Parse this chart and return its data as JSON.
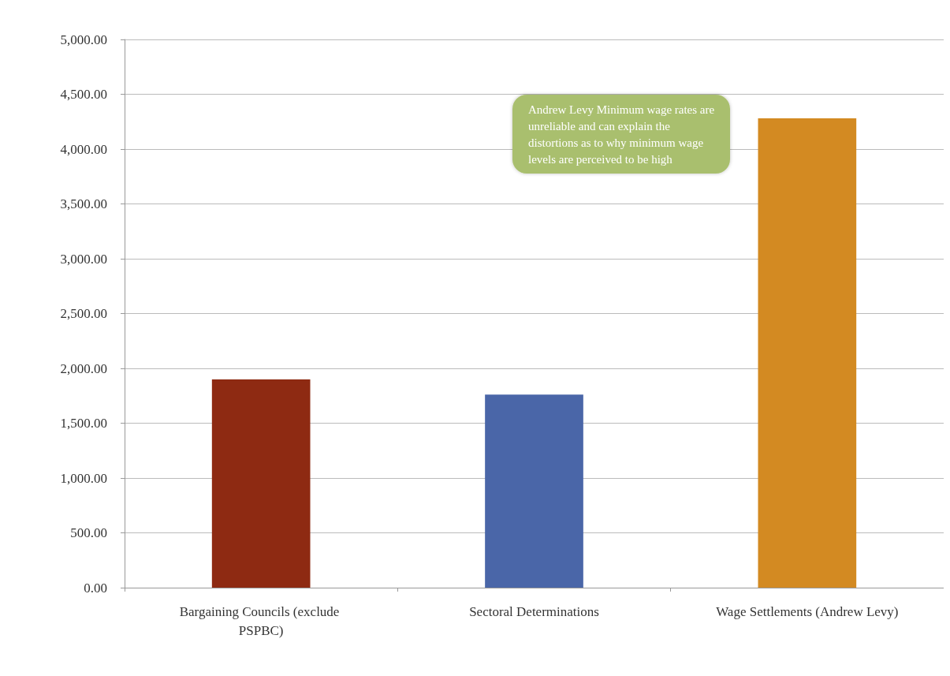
{
  "chart_data": {
    "type": "bar",
    "categories": [
      "Bargaining Councils (exclude PSPBC)",
      "Sectoral Determinations",
      "Wage Settlements (Andrew Levy)"
    ],
    "values": [
      1900,
      1760,
      4280
    ],
    "colors": [
      "#8e2a12",
      "#4a66a8",
      "#d38a22"
    ],
    "ylim": [
      0,
      5000
    ],
    "yticks": [
      {
        "value": 0,
        "label": "0.00"
      },
      {
        "value": 500,
        "label": "500.00"
      },
      {
        "value": 1000,
        "label": "1,000.00"
      },
      {
        "value": 1500,
        "label": "1,500.00"
      },
      {
        "value": 2000,
        "label": "2,000.00"
      },
      {
        "value": 2500,
        "label": "2,500.00"
      },
      {
        "value": 3000,
        "label": "3,000.00"
      },
      {
        "value": 3500,
        "label": "3,500.00"
      },
      {
        "value": 4000,
        "label": "4,000.00"
      },
      {
        "value": 4500,
        "label": "4,500.00"
      },
      {
        "value": 5000,
        "label": "5,000.00"
      }
    ],
    "grid": "y",
    "annotations": [
      "Andrew Levy Minimum wage rates are unreliable and can explain the distortions as to why minimum wage levels are perceived to be high"
    ]
  }
}
